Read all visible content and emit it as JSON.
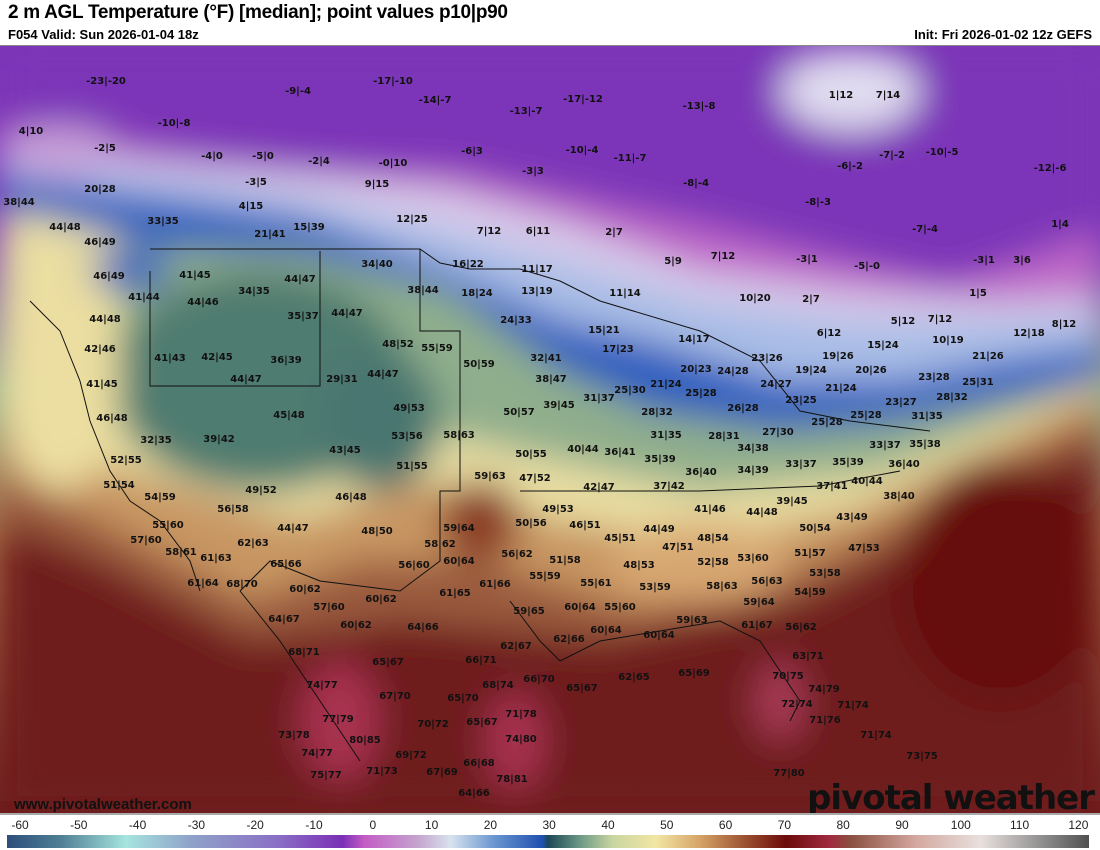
{
  "header": {
    "title": "2 m AGL Temperature (°F) [median]; point values p10|p90",
    "valid": "F054 Valid: Sun 2026-01-04 18z",
    "init": "Init: Fri 2026-01-02 12z GEFS"
  },
  "map": {
    "watermark_url": "www.pivotalweather.com",
    "logo": "pivotal weather",
    "point_values": [
      "-23|-20",
      "-9|-4",
      "-17|-10",
      "-14|-7",
      "-13|-7",
      "-17|-12",
      "-13|-8",
      "4|10",
      "-10|-8",
      "-2|5",
      "-4|0",
      "-5|0",
      "-2|4",
      "-0|10",
      "-6|3",
      "-3|3",
      "-10|-4",
      "-11|-7",
      "-8|-4",
      "1|12",
      "7|14",
      "-6|-2",
      "-7|-2",
      "-10|-5",
      "-12|-6",
      "-8|-3",
      "-7|-4",
      "1|4",
      "-3|5",
      "9|15",
      "20|28",
      "4|15",
      "38|44",
      "33|35",
      "12|25",
      "15|39",
      "21|41",
      "44|48",
      "46|49",
      "7|12",
      "6|11",
      "2|7",
      "5|9",
      "7|12",
      "-3|1",
      "-5|-0",
      "-3|1",
      "3|6",
      "1|5",
      "34|40",
      "16|22",
      "11|17",
      "41|45",
      "46|49",
      "44|47",
      "38|44",
      "18|24",
      "13|19",
      "11|14",
      "10|20",
      "2|7",
      "41|44",
      "44|46",
      "34|35",
      "24|33",
      "15|21",
      "17|23",
      "14|17",
      "35|37",
      "44|47",
      "44|48",
      "5|12",
      "7|12",
      "8|12",
      "6|12",
      "12|18",
      "10|19",
      "15|24",
      "19|26",
      "21|26",
      "20|26",
      "23|26",
      "42|46",
      "48|52",
      "55|59",
      "41|43",
      "42|45",
      "36|39",
      "32|41",
      "20|23",
      "24|28",
      "19|24",
      "23|28",
      "25|31",
      "50|59",
      "44|47",
      "29|31",
      "44|47",
      "41|45",
      "38|47",
      "24|27",
      "21|24",
      "25|30",
      "21|24",
      "25|28",
      "28|32",
      "23|25",
      "23|27",
      "39|45",
      "31|37",
      "49|53",
      "50|57",
      "26|28",
      "28|32",
      "25|28",
      "25|28",
      "46|48",
      "45|48",
      "53|56",
      "58|63",
      "31|35",
      "28|31",
      "27|30",
      "31|35",
      "33|37",
      "35|38",
      "32|35",
      "39|42",
      "43|45",
      "40|44",
      "36|41",
      "50|55",
      "35|39",
      "34|38",
      "52|55",
      "51|55",
      "36|40",
      "59|63",
      "47|52",
      "36|40",
      "34|39",
      "33|37",
      "35|39",
      "51|54",
      "42|47",
      "37|42",
      "37|41",
      "40|44",
      "54|59",
      "49|52",
      "38|40",
      "46|48",
      "39|45",
      "41|46",
      "44|48",
      "49|53",
      "56|58",
      "43|49",
      "55|60",
      "44|47",
      "50|56",
      "46|51",
      "44|49",
      "48|50",
      "59|64",
      "45|51",
      "50|54",
      "57|60",
      "62|63",
      "58|62",
      "48|54",
      "47|51",
      "51|57",
      "47|53",
      "58|61",
      "61|63",
      "56|62",
      "53|60",
      "65|66",
      "56|60",
      "60|64",
      "51|58",
      "52|58",
      "48|53",
      "53|58",
      "61|64",
      "68|70",
      "60|62",
      "55|59",
      "61|66",
      "55|61",
      "58|63",
      "56|63",
      "61|65",
      "57|60",
      "60|62",
      "53|59",
      "54|59",
      "60|64",
      "55|60",
      "59|65",
      "59|64",
      "64|67",
      "64|66",
      "60|62",
      "60|64",
      "62|66",
      "59|63",
      "60|64",
      "61|67",
      "56|62",
      "62|67",
      "68|71",
      "66|71",
      "65|67",
      "63|71",
      "66|70",
      "68|74",
      "65|70",
      "67|70",
      "65|67",
      "62|65",
      "65|69",
      "70|75",
      "74|77",
      "74|79",
      "72|74",
      "71|74",
      "77|79",
      "71|78",
      "65|67",
      "70|72",
      "71|76",
      "73|78",
      "80|85",
      "74|80",
      "71|74",
      "74|77",
      "69|72",
      "73|75",
      "66|68",
      "75|77",
      "71|73",
      "67|69",
      "78|81",
      "77|80",
      "64|66"
    ]
  },
  "colorbar": {
    "ticks": [
      "-60",
      "-50",
      "-40",
      "-30",
      "-20",
      "-10",
      "0",
      "10",
      "20",
      "30",
      "40",
      "50",
      "60",
      "70",
      "80",
      "90",
      "100",
      "110",
      "120"
    ]
  }
}
